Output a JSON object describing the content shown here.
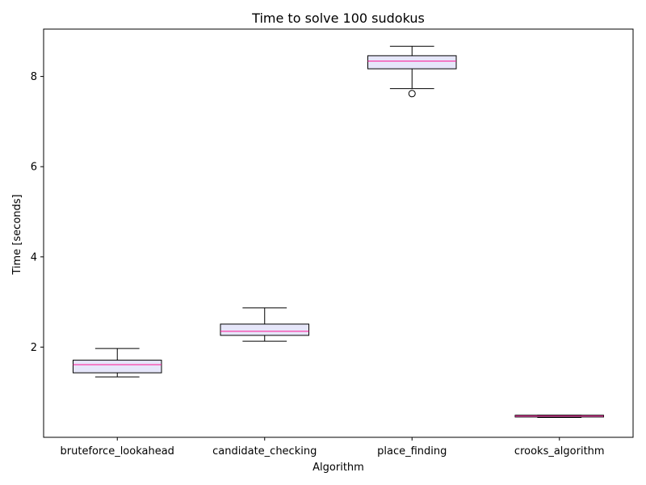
{
  "chart_data": {
    "type": "box",
    "title": "Time to solve 100 sudokus",
    "xlabel": "Algorithm",
    "ylabel": "Time [seconds]",
    "ylim": [
      0.0,
      9.05
    ],
    "yticks": [
      2,
      4,
      6,
      8
    ],
    "grid": false,
    "categories": [
      "bruteforce_lookahead",
      "candidate_checking",
      "place_finding",
      "crooks_algorithm"
    ],
    "boxes": [
      {
        "category": "bruteforce_lookahead",
        "whisker_low": 1.34,
        "q1": 1.43,
        "median": 1.61,
        "q3": 1.71,
        "whisker_high": 1.97,
        "outliers": []
      },
      {
        "category": "candidate_checking",
        "whisker_low": 2.13,
        "q1": 2.26,
        "median": 2.35,
        "q3": 2.51,
        "whisker_high": 2.87,
        "outliers": []
      },
      {
        "category": "place_finding",
        "whisker_low": 7.73,
        "q1": 8.17,
        "median": 8.34,
        "q3": 8.46,
        "whisker_high": 8.67,
        "outliers": [
          7.62
        ]
      },
      {
        "category": "crooks_algorithm",
        "whisker_low": 0.44,
        "q1": 0.45,
        "median": 0.47,
        "q3": 0.49,
        "whisker_high": 0.49,
        "outliers": []
      }
    ],
    "colors": {
      "box_fill": "#e6e6fa",
      "box_edge": "#000000",
      "median": "#ff1493",
      "whisker": "#000000"
    }
  }
}
